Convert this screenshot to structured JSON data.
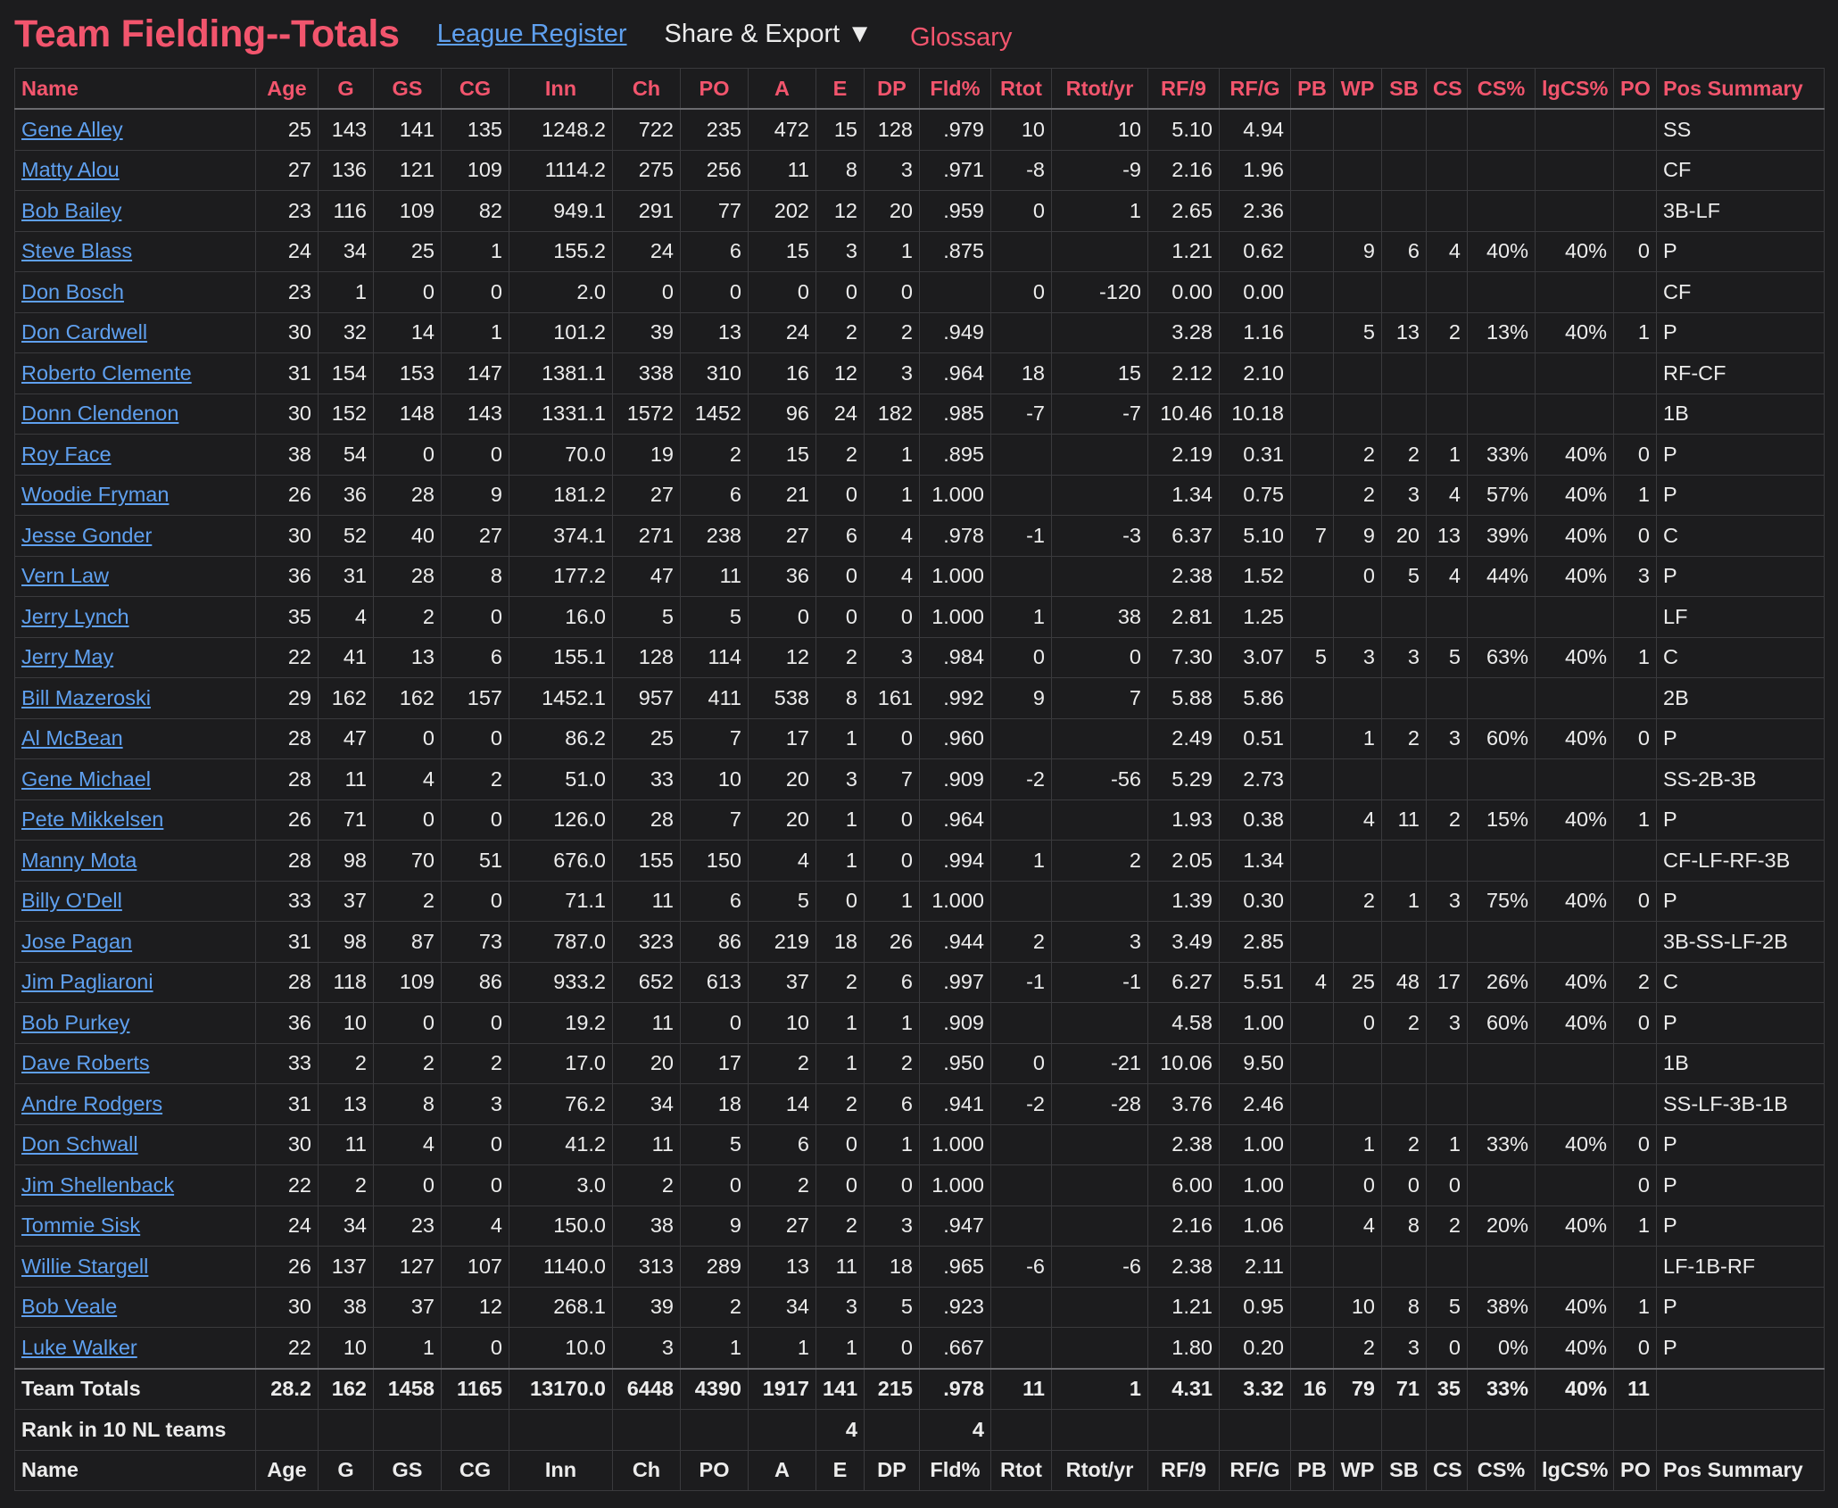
{
  "header": {
    "title": "Team Fielding--Totals",
    "league_register": "League Register",
    "share_export": "Share & Export ▼",
    "glossary": "Glossary"
  },
  "table": {
    "columns": [
      "Name",
      "Age",
      "G",
      "GS",
      "CG",
      "Inn",
      "Ch",
      "PO",
      "A",
      "E",
      "DP",
      "Fld%",
      "Rtot",
      "Rtot/yr",
      "RF/9",
      "RF/G",
      "PB",
      "WP",
      "SB",
      "CS",
      "CS%",
      "lgCS%",
      "PO",
      "Pos Summary"
    ],
    "rows": [
      [
        "Gene Alley",
        "25",
        "143",
        "141",
        "135",
        "1248.2",
        "722",
        "235",
        "472",
        "15",
        "128",
        ".979",
        "10",
        "10",
        "5.10",
        "4.94",
        "",
        "",
        "",
        "",
        "",
        "",
        "",
        "SS"
      ],
      [
        "Matty Alou",
        "27",
        "136",
        "121",
        "109",
        "1114.2",
        "275",
        "256",
        "11",
        "8",
        "3",
        ".971",
        "-8",
        "-9",
        "2.16",
        "1.96",
        "",
        "",
        "",
        "",
        "",
        "",
        "",
        "CF"
      ],
      [
        "Bob Bailey",
        "23",
        "116",
        "109",
        "82",
        "949.1",
        "291",
        "77",
        "202",
        "12",
        "20",
        ".959",
        "0",
        "1",
        "2.65",
        "2.36",
        "",
        "",
        "",
        "",
        "",
        "",
        "",
        "3B-LF"
      ],
      [
        "Steve Blass",
        "24",
        "34",
        "25",
        "1",
        "155.2",
        "24",
        "6",
        "15",
        "3",
        "1",
        ".875",
        "",
        "",
        "1.21",
        "0.62",
        "",
        "9",
        "6",
        "4",
        "40%",
        "40%",
        "0",
        "P"
      ],
      [
        "Don Bosch",
        "23",
        "1",
        "0",
        "0",
        "2.0",
        "0",
        "0",
        "0",
        "0",
        "0",
        "",
        "0",
        "-120",
        "0.00",
        "0.00",
        "",
        "",
        "",
        "",
        "",
        "",
        "",
        "CF"
      ],
      [
        "Don Cardwell",
        "30",
        "32",
        "14",
        "1",
        "101.2",
        "39",
        "13",
        "24",
        "2",
        "2",
        ".949",
        "",
        "",
        "3.28",
        "1.16",
        "",
        "5",
        "13",
        "2",
        "13%",
        "40%",
        "1",
        "P"
      ],
      [
        "Roberto Clemente",
        "31",
        "154",
        "153",
        "147",
        "1381.1",
        "338",
        "310",
        "16",
        "12",
        "3",
        ".964",
        "18",
        "15",
        "2.12",
        "2.10",
        "",
        "",
        "",
        "",
        "",
        "",
        "",
        "RF-CF"
      ],
      [
        "Donn Clendenon",
        "30",
        "152",
        "148",
        "143",
        "1331.1",
        "1572",
        "1452",
        "96",
        "24",
        "182",
        ".985",
        "-7",
        "-7",
        "10.46",
        "10.18",
        "",
        "",
        "",
        "",
        "",
        "",
        "",
        "1B"
      ],
      [
        "Roy Face",
        "38",
        "54",
        "0",
        "0",
        "70.0",
        "19",
        "2",
        "15",
        "2",
        "1",
        ".895",
        "",
        "",
        "2.19",
        "0.31",
        "",
        "2",
        "2",
        "1",
        "33%",
        "40%",
        "0",
        "P"
      ],
      [
        "Woodie Fryman",
        "26",
        "36",
        "28",
        "9",
        "181.2",
        "27",
        "6",
        "21",
        "0",
        "1",
        "1.000",
        "",
        "",
        "1.34",
        "0.75",
        "",
        "2",
        "3",
        "4",
        "57%",
        "40%",
        "1",
        "P"
      ],
      [
        "Jesse Gonder",
        "30",
        "52",
        "40",
        "27",
        "374.1",
        "271",
        "238",
        "27",
        "6",
        "4",
        ".978",
        "-1",
        "-3",
        "6.37",
        "5.10",
        "7",
        "9",
        "20",
        "13",
        "39%",
        "40%",
        "0",
        "C"
      ],
      [
        "Vern Law",
        "36",
        "31",
        "28",
        "8",
        "177.2",
        "47",
        "11",
        "36",
        "0",
        "4",
        "1.000",
        "",
        "",
        "2.38",
        "1.52",
        "",
        "0",
        "5",
        "4",
        "44%",
        "40%",
        "3",
        "P"
      ],
      [
        "Jerry Lynch",
        "35",
        "4",
        "2",
        "0",
        "16.0",
        "5",
        "5",
        "0",
        "0",
        "0",
        "1.000",
        "1",
        "38",
        "2.81",
        "1.25",
        "",
        "",
        "",
        "",
        "",
        "",
        "",
        "LF"
      ],
      [
        "Jerry May",
        "22",
        "41",
        "13",
        "6",
        "155.1",
        "128",
        "114",
        "12",
        "2",
        "3",
        ".984",
        "0",
        "0",
        "7.30",
        "3.07",
        "5",
        "3",
        "3",
        "5",
        "63%",
        "40%",
        "1",
        "C"
      ],
      [
        "Bill Mazeroski",
        "29",
        "162",
        "162",
        "157",
        "1452.1",
        "957",
        "411",
        "538",
        "8",
        "161",
        ".992",
        "9",
        "7",
        "5.88",
        "5.86",
        "",
        "",
        "",
        "",
        "",
        "",
        "",
        "2B"
      ],
      [
        "Al McBean",
        "28",
        "47",
        "0",
        "0",
        "86.2",
        "25",
        "7",
        "17",
        "1",
        "0",
        ".960",
        "",
        "",
        "2.49",
        "0.51",
        "",
        "1",
        "2",
        "3",
        "60%",
        "40%",
        "0",
        "P"
      ],
      [
        "Gene Michael",
        "28",
        "11",
        "4",
        "2",
        "51.0",
        "33",
        "10",
        "20",
        "3",
        "7",
        ".909",
        "-2",
        "-56",
        "5.29",
        "2.73",
        "",
        "",
        "",
        "",
        "",
        "",
        "",
        "SS-2B-3B"
      ],
      [
        "Pete Mikkelsen",
        "26",
        "71",
        "0",
        "0",
        "126.0",
        "28",
        "7",
        "20",
        "1",
        "0",
        ".964",
        "",
        "",
        "1.93",
        "0.38",
        "",
        "4",
        "11",
        "2",
        "15%",
        "40%",
        "1",
        "P"
      ],
      [
        "Manny Mota",
        "28",
        "98",
        "70",
        "51",
        "676.0",
        "155",
        "150",
        "4",
        "1",
        "0",
        ".994",
        "1",
        "2",
        "2.05",
        "1.34",
        "",
        "",
        "",
        "",
        "",
        "",
        "",
        "CF-LF-RF-3B"
      ],
      [
        "Billy O'Dell",
        "33",
        "37",
        "2",
        "0",
        "71.1",
        "11",
        "6",
        "5",
        "0",
        "1",
        "1.000",
        "",
        "",
        "1.39",
        "0.30",
        "",
        "2",
        "1",
        "3",
        "75%",
        "40%",
        "0",
        "P"
      ],
      [
        "Jose Pagan",
        "31",
        "98",
        "87",
        "73",
        "787.0",
        "323",
        "86",
        "219",
        "18",
        "26",
        ".944",
        "2",
        "3",
        "3.49",
        "2.85",
        "",
        "",
        "",
        "",
        "",
        "",
        "",
        "3B-SS-LF-2B"
      ],
      [
        "Jim Pagliaroni",
        "28",
        "118",
        "109",
        "86",
        "933.2",
        "652",
        "613",
        "37",
        "2",
        "6",
        ".997",
        "-1",
        "-1",
        "6.27",
        "5.51",
        "4",
        "25",
        "48",
        "17",
        "26%",
        "40%",
        "2",
        "C"
      ],
      [
        "Bob Purkey",
        "36",
        "10",
        "0",
        "0",
        "19.2",
        "11",
        "0",
        "10",
        "1",
        "1",
        ".909",
        "",
        "",
        "4.58",
        "1.00",
        "",
        "0",
        "2",
        "3",
        "60%",
        "40%",
        "0",
        "P"
      ],
      [
        "Dave Roberts",
        "33",
        "2",
        "2",
        "2",
        "17.0",
        "20",
        "17",
        "2",
        "1",
        "2",
        ".950",
        "0",
        "-21",
        "10.06",
        "9.50",
        "",
        "",
        "",
        "",
        "",
        "",
        "",
        "1B"
      ],
      [
        "Andre Rodgers",
        "31",
        "13",
        "8",
        "3",
        "76.2",
        "34",
        "18",
        "14",
        "2",
        "6",
        ".941",
        "-2",
        "-28",
        "3.76",
        "2.46",
        "",
        "",
        "",
        "",
        "",
        "",
        "",
        "SS-LF-3B-1B"
      ],
      [
        "Don Schwall",
        "30",
        "11",
        "4",
        "0",
        "41.2",
        "11",
        "5",
        "6",
        "0",
        "1",
        "1.000",
        "",
        "",
        "2.38",
        "1.00",
        "",
        "1",
        "2",
        "1",
        "33%",
        "40%",
        "0",
        "P"
      ],
      [
        "Jim Shellenback",
        "22",
        "2",
        "0",
        "0",
        "3.0",
        "2",
        "0",
        "2",
        "0",
        "0",
        "1.000",
        "",
        "",
        "6.00",
        "1.00",
        "",
        "0",
        "0",
        "0",
        "",
        "",
        "0",
        "P"
      ],
      [
        "Tommie Sisk",
        "24",
        "34",
        "23",
        "4",
        "150.0",
        "38",
        "9",
        "27",
        "2",
        "3",
        ".947",
        "",
        "",
        "2.16",
        "1.06",
        "",
        "4",
        "8",
        "2",
        "20%",
        "40%",
        "1",
        "P"
      ],
      [
        "Willie Stargell",
        "26",
        "137",
        "127",
        "107",
        "1140.0",
        "313",
        "289",
        "13",
        "11",
        "18",
        ".965",
        "-6",
        "-6",
        "2.38",
        "2.11",
        "",
        "",
        "",
        "",
        "",
        "",
        "",
        "LF-1B-RF"
      ],
      [
        "Bob Veale",
        "30",
        "38",
        "37",
        "12",
        "268.1",
        "39",
        "2",
        "34",
        "3",
        "5",
        ".923",
        "",
        "",
        "1.21",
        "0.95",
        "",
        "10",
        "8",
        "5",
        "38%",
        "40%",
        "1",
        "P"
      ],
      [
        "Luke Walker",
        "22",
        "10",
        "1",
        "0",
        "10.0",
        "3",
        "1",
        "1",
        "1",
        "0",
        ".667",
        "",
        "",
        "1.80",
        "0.20",
        "",
        "2",
        "3",
        "0",
        "0%",
        "40%",
        "0",
        "P"
      ]
    ],
    "totals": [
      "Team Totals",
      "28.2",
      "162",
      "1458",
      "1165",
      "13170.0",
      "6448",
      "4390",
      "1917",
      "141",
      "215",
      ".978",
      "11",
      "1",
      "4.31",
      "3.32",
      "16",
      "79",
      "71",
      "35",
      "33%",
      "40%",
      "11",
      ""
    ],
    "rank": [
      "Rank in 10 NL teams",
      "",
      "",
      "",
      "",
      "",
      "",
      "",
      "",
      "4",
      "",
      "4",
      "",
      "",
      "",
      "",
      "",
      "",
      "",
      "",
      "",
      "",
      "",
      ""
    ]
  }
}
